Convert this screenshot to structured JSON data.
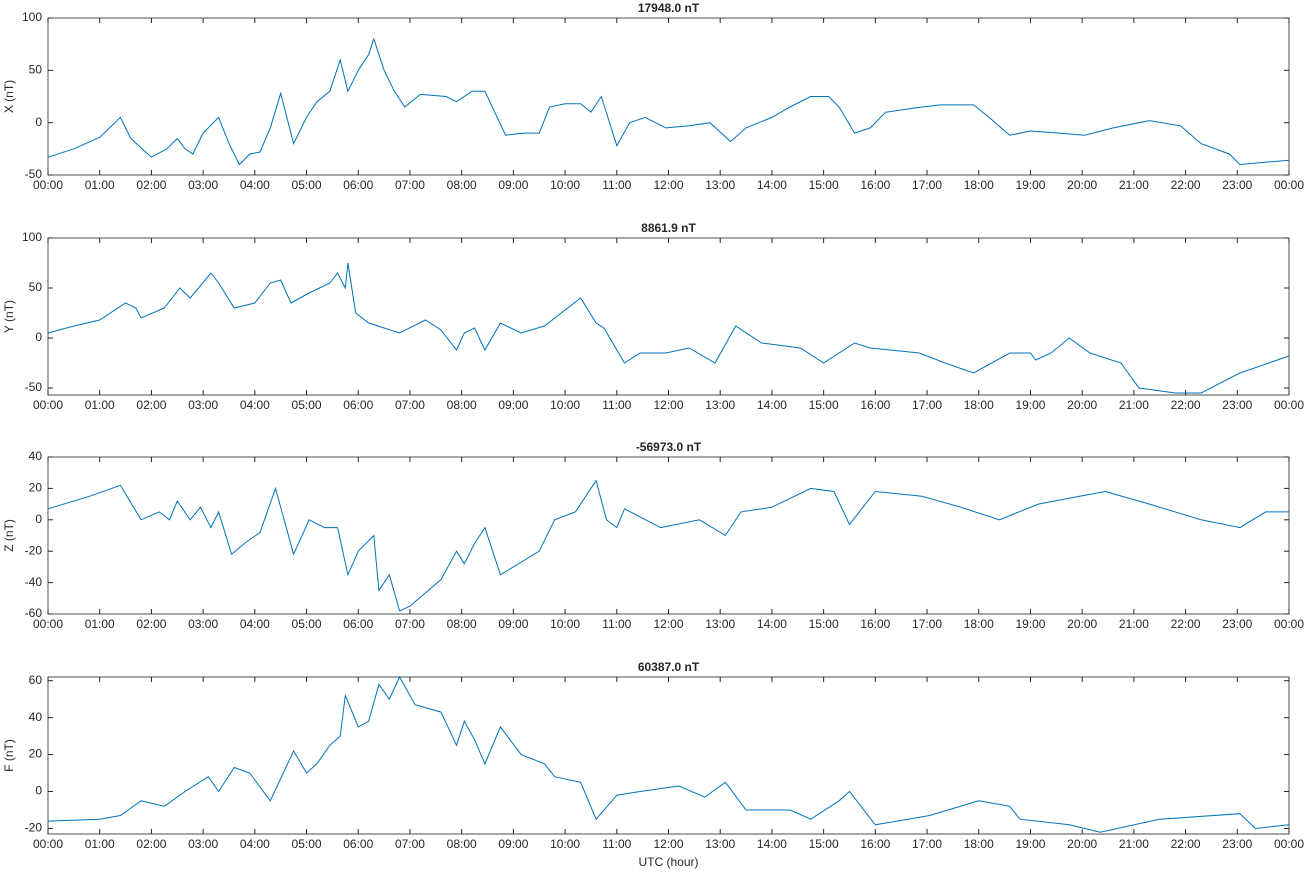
{
  "chart_data": [
    {
      "type": "line",
      "title": "17948.0 nT",
      "ylabel": "X (nT)",
      "color": "#0072bd",
      "x": [
        0,
        0.5,
        1,
        1.4,
        1.6,
        2.0,
        2.3,
        2.5,
        2.65,
        2.8,
        3.0,
        3.3,
        3.5,
        3.7,
        3.9,
        4.1,
        4.3,
        4.5,
        4.75,
        5.0,
        5.2,
        5.45,
        5.65,
        5.8,
        6.0,
        6.2,
        6.3,
        6.5,
        6.7,
        6.9,
        7.2,
        7.7,
        7.9,
        8.2,
        8.45,
        8.85,
        9.2,
        9.5,
        9.7,
        10.0,
        10.3,
        10.5,
        10.7,
        11.0,
        11.25,
        11.55,
        11.95,
        12.4,
        12.8,
        13.2,
        13.5,
        14.0,
        14.35,
        14.75,
        15.1,
        15.3,
        15.6,
        15.9,
        16.2,
        16.9,
        17.25,
        17.9,
        18.2,
        18.6,
        19.0,
        19.55,
        20.05,
        20.6,
        21.3,
        21.9,
        22.3,
        22.85,
        23.05,
        23.5,
        24
      ],
      "values": [
        -33,
        -25,
        -14,
        5,
        -15,
        -33,
        -25,
        -15,
        -25,
        -30,
        -10,
        5,
        -20,
        -40,
        -30,
        -28,
        -5,
        28,
        -20,
        5,
        20,
        30,
        60,
        30,
        50,
        65,
        80,
        50,
        30,
        15,
        27,
        25,
        20,
        30,
        30,
        -12,
        -10,
        -10,
        15,
        18,
        18,
        10,
        25,
        -22,
        0,
        5,
        -5,
        -3,
        0,
        -18,
        -5,
        5,
        15,
        25,
        25,
        15,
        -10,
        -5,
        10,
        15,
        17,
        17,
        5,
        -12,
        -8,
        -10,
        -12,
        -5,
        2,
        -3,
        -20,
        -30,
        -40,
        -38,
        -36
      ],
      "xlim": [
        0,
        24
      ],
      "ylim": [
        -50,
        100
      ],
      "yticks": [
        -50,
        0,
        50,
        100
      ],
      "xticks": [
        {
          "value": 0,
          "label": "00:00"
        },
        {
          "value": 1,
          "label": "01:00"
        },
        {
          "value": 2,
          "label": "02:00"
        },
        {
          "value": 3,
          "label": "03:00"
        },
        {
          "value": 4,
          "label": "04:00"
        },
        {
          "value": 5,
          "label": "05:00"
        },
        {
          "value": 6,
          "label": "06:00"
        },
        {
          "value": 7,
          "label": "07:00"
        },
        {
          "value": 8,
          "label": "08:00"
        },
        {
          "value": 9,
          "label": "09:00"
        },
        {
          "value": 10,
          "label": "10:00"
        },
        {
          "value": 11,
          "label": "11:00"
        },
        {
          "value": 12,
          "label": "12:00"
        },
        {
          "value": 13,
          "label": "13:00"
        },
        {
          "value": 14,
          "label": "14:00"
        },
        {
          "value": 15,
          "label": "15:00"
        },
        {
          "value": 16,
          "label": "16:00"
        },
        {
          "value": 17,
          "label": "17:00"
        },
        {
          "value": 18,
          "label": "18:00"
        },
        {
          "value": 19,
          "label": "19:00"
        },
        {
          "value": 20,
          "label": "20:00"
        },
        {
          "value": 21,
          "label": "21:00"
        },
        {
          "value": 22,
          "label": "22:00"
        },
        {
          "value": 23,
          "label": "23:00"
        },
        {
          "value": 24,
          "label": "00:00"
        }
      ]
    },
    {
      "type": "line",
      "title": "8861.9 nT",
      "ylabel": "Y (nT)",
      "color": "#0072bd",
      "x": [
        0,
        0.5,
        1.0,
        1.5,
        1.7,
        1.8,
        2.25,
        2.55,
        2.75,
        3.15,
        3.3,
        3.6,
        4.0,
        4.3,
        4.5,
        4.7,
        5.05,
        5.45,
        5.6,
        5.75,
        5.8,
        5.95,
        6.2,
        6.8,
        7.3,
        7.6,
        7.9,
        8.05,
        8.25,
        8.45,
        8.75,
        9.15,
        9.6,
        10.3,
        10.6,
        10.75,
        11.15,
        11.45,
        11.95,
        12.4,
        12.9,
        13.3,
        13.8,
        14.55,
        15.0,
        15.6,
        15.9,
        16.85,
        17.35,
        17.9,
        18.6,
        19.0,
        19.1,
        19.4,
        19.75,
        20.15,
        20.75,
        21.1,
        21.8,
        22.3,
        23.05,
        24
      ],
      "values": [
        5,
        12,
        18,
        35,
        30,
        20,
        30,
        50,
        40,
        65,
        55,
        30,
        35,
        55,
        58,
        35,
        45,
        55,
        65,
        50,
        75,
        25,
        15,
        5,
        18,
        8,
        -12,
        5,
        10,
        -12,
        15,
        5,
        12,
        40,
        15,
        10,
        -25,
        -15,
        -15,
        -10,
        -25,
        12,
        -5,
        -10,
        -25,
        -5,
        -10,
        -15,
        -25,
        -35,
        -15,
        -15,
        -22,
        -15,
        0,
        -15,
        -25,
        -50,
        -55,
        -55,
        -35,
        -18
      ],
      "xlim": [
        0,
        24
      ],
      "ylim": [
        -57,
        100
      ],
      "yticks": [
        -50,
        0,
        50,
        100
      ],
      "xticks": [
        {
          "value": 0,
          "label": "00:00"
        },
        {
          "value": 1,
          "label": "01:00"
        },
        {
          "value": 2,
          "label": "02:00"
        },
        {
          "value": 3,
          "label": "03:00"
        },
        {
          "value": 4,
          "label": "04:00"
        },
        {
          "value": 5,
          "label": "05:00"
        },
        {
          "value": 6,
          "label": "06:00"
        },
        {
          "value": 7,
          "label": "07:00"
        },
        {
          "value": 8,
          "label": "08:00"
        },
        {
          "value": 9,
          "label": "09:00"
        },
        {
          "value": 10,
          "label": "10:00"
        },
        {
          "value": 11,
          "label": "11:00"
        },
        {
          "value": 12,
          "label": "12:00"
        },
        {
          "value": 13,
          "label": "13:00"
        },
        {
          "value": 14,
          "label": "14:00"
        },
        {
          "value": 15,
          "label": "15:00"
        },
        {
          "value": 16,
          "label": "16:00"
        },
        {
          "value": 17,
          "label": "17:00"
        },
        {
          "value": 18,
          "label": "18:00"
        },
        {
          "value": 19,
          "label": "19:00"
        },
        {
          "value": 20,
          "label": "20:00"
        },
        {
          "value": 21,
          "label": "21:00"
        },
        {
          "value": 22,
          "label": "22:00"
        },
        {
          "value": 23,
          "label": "23:00"
        },
        {
          "value": 24,
          "label": "00:00"
        }
      ]
    },
    {
      "type": "line",
      "title": "-56973.0 nT",
      "ylabel": "Z (nT)",
      "color": "#0072bd",
      "x": [
        0,
        0.8,
        1.4,
        1.8,
        2.15,
        2.35,
        2.5,
        2.75,
        2.95,
        3.15,
        3.3,
        3.55,
        3.8,
        4.1,
        4.4,
        4.75,
        5.05,
        5.35,
        5.6,
        5.8,
        6.0,
        6.3,
        6.4,
        6.6,
        6.8,
        7.0,
        7.6,
        7.9,
        8.05,
        8.25,
        8.45,
        8.75,
        9.5,
        9.8,
        10.2,
        10.6,
        10.8,
        11.0,
        11.15,
        11.85,
        12.6,
        13.1,
        13.4,
        14.0,
        14.75,
        15.2,
        15.5,
        16.0,
        16.9,
        17.65,
        18.4,
        19.15,
        19.95,
        20.45,
        21.3,
        22.3,
        23.05,
        23.55,
        24
      ],
      "values": [
        7,
        15,
        22,
        0,
        5,
        0,
        12,
        0,
        8,
        -5,
        5,
        -22,
        -15,
        -8,
        20,
        -22,
        0,
        -5,
        -5,
        -35,
        -20,
        -10,
        -45,
        -35,
        -58,
        -55,
        -38,
        -20,
        -28,
        -15,
        -5,
        -35,
        -20,
        0,
        5,
        25,
        0,
        -5,
        7,
        -5,
        0,
        -10,
        5,
        8,
        20,
        18,
        -3,
        18,
        15,
        8,
        0,
        10,
        15,
        18,
        10,
        0,
        -5,
        5,
        5
      ],
      "xlim": [
        0,
        24
      ],
      "ylim": [
        -60,
        40
      ],
      "yticks": [
        -60,
        -40,
        -20,
        0,
        20,
        40
      ],
      "xticks": [
        {
          "value": 0,
          "label": "00:00"
        },
        {
          "value": 1,
          "label": "01:00"
        },
        {
          "value": 2,
          "label": "02:00"
        },
        {
          "value": 3,
          "label": "03:00"
        },
        {
          "value": 4,
          "label": "04:00"
        },
        {
          "value": 5,
          "label": "05:00"
        },
        {
          "value": 6,
          "label": "06:00"
        },
        {
          "value": 7,
          "label": "07:00"
        },
        {
          "value": 8,
          "label": "08:00"
        },
        {
          "value": 9,
          "label": "09:00"
        },
        {
          "value": 10,
          "label": "10:00"
        },
        {
          "value": 11,
          "label": "11:00"
        },
        {
          "value": 12,
          "label": "12:00"
        },
        {
          "value": 13,
          "label": "13:00"
        },
        {
          "value": 14,
          "label": "14:00"
        },
        {
          "value": 15,
          "label": "15:00"
        },
        {
          "value": 16,
          "label": "16:00"
        },
        {
          "value": 17,
          "label": "17:00"
        },
        {
          "value": 18,
          "label": "18:00"
        },
        {
          "value": 19,
          "label": "19:00"
        },
        {
          "value": 20,
          "label": "20:00"
        },
        {
          "value": 21,
          "label": "21:00"
        },
        {
          "value": 22,
          "label": "22:00"
        },
        {
          "value": 23,
          "label": "23:00"
        },
        {
          "value": 24,
          "label": "00:00"
        }
      ]
    },
    {
      "type": "line",
      "title": "60387.0 nT",
      "ylabel": "F (nT)",
      "xlabel": "UTC (hour)",
      "color": "#0072bd",
      "x": [
        0,
        1.0,
        1.4,
        1.8,
        2.25,
        2.65,
        3.1,
        3.3,
        3.6,
        3.9,
        4.3,
        4.75,
        5.0,
        5.2,
        5.45,
        5.65,
        5.75,
        6.0,
        6.2,
        6.4,
        6.6,
        6.8,
        7.1,
        7.6,
        7.9,
        8.05,
        8.25,
        8.45,
        8.75,
        9.15,
        9.6,
        9.8,
        10.3,
        10.6,
        11.0,
        11.45,
        12.2,
        12.7,
        13.1,
        13.5,
        14.35,
        14.75,
        15.3,
        15.5,
        16.0,
        17.05,
        18.0,
        18.6,
        18.8,
        19.75,
        20.35,
        21.5,
        23.05,
        23.35,
        24
      ],
      "values": [
        -16,
        -15,
        -13,
        -5,
        -8,
        0,
        8,
        0,
        13,
        10,
        -5,
        22,
        10,
        15,
        25,
        30,
        52,
        35,
        38,
        58,
        50,
        62,
        47,
        43,
        25,
        38,
        28,
        15,
        35,
        20,
        15,
        8,
        5,
        -15,
        -2,
        0,
        3,
        -3,
        5,
        -10,
        -10,
        -15,
        -5,
        0,
        -18,
        -13,
        -5,
        -8,
        -15,
        -18,
        -22,
        -15,
        -12,
        -20,
        -18
      ],
      "xlim": [
        0,
        24
      ],
      "ylim": [
        -23,
        62
      ],
      "yticks": [
        -20,
        0,
        20,
        40,
        60
      ],
      "xticks": [
        {
          "value": 0,
          "label": "00:00"
        },
        {
          "value": 1,
          "label": "01:00"
        },
        {
          "value": 2,
          "label": "02:00"
        },
        {
          "value": 3,
          "label": "03:00"
        },
        {
          "value": 4,
          "label": "04:00"
        },
        {
          "value": 5,
          "label": "05:00"
        },
        {
          "value": 6,
          "label": "06:00"
        },
        {
          "value": 7,
          "label": "07:00"
        },
        {
          "value": 8,
          "label": "08:00"
        },
        {
          "value": 9,
          "label": "09:00"
        },
        {
          "value": 10,
          "label": "10:00"
        },
        {
          "value": 11,
          "label": "11:00"
        },
        {
          "value": 12,
          "label": "12:00"
        },
        {
          "value": 13,
          "label": "13:00"
        },
        {
          "value": 14,
          "label": "14:00"
        },
        {
          "value": 15,
          "label": "15:00"
        },
        {
          "value": 16,
          "label": "16:00"
        },
        {
          "value": 17,
          "label": "17:00"
        },
        {
          "value": 18,
          "label": "18:00"
        },
        {
          "value": 19,
          "label": "19:00"
        },
        {
          "value": 20,
          "label": "20:00"
        },
        {
          "value": 21,
          "label": "21:00"
        },
        {
          "value": 22,
          "label": "22:00"
        },
        {
          "value": 23,
          "label": "23:00"
        },
        {
          "value": 24,
          "label": "00:00"
        }
      ]
    }
  ]
}
